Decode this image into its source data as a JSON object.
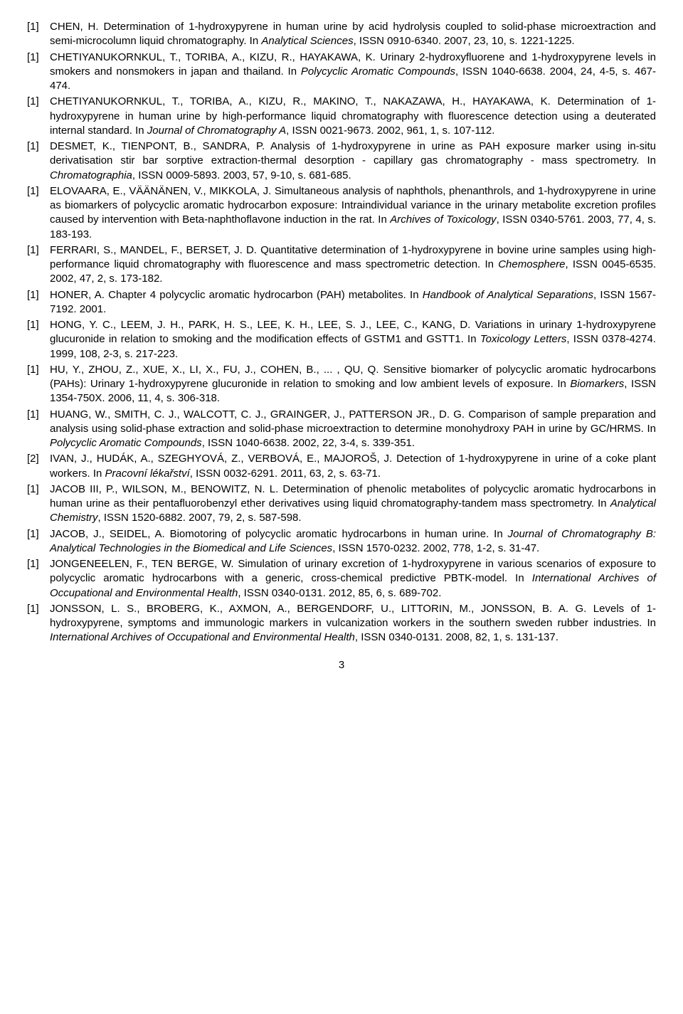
{
  "page_number": "3",
  "refs": [
    {
      "n": "[1]",
      "segs": [
        {
          "t": "CHEN, H. Determination of 1-hydroxypyrene in human urine by acid hydrolysis coupled to solid-phase microextraction and semi-microcolumn liquid chromatography. In "
        },
        {
          "t": "Analytical Sciences",
          "i": true
        },
        {
          "t": ", ISSN 0910-6340. 2007, 23, 10, s. 1221-1225."
        }
      ]
    },
    {
      "n": "[1]",
      "segs": [
        {
          "t": "CHETIYANUKORNKUL, T., TORIBA, A., KIZU, R., HAYAKAWA, K. Urinary 2-hydroxyfluorene and 1-hydroxypyrene levels in smokers and nonsmokers in japan and thailand. In "
        },
        {
          "t": "Polycyclic Aromatic Compounds",
          "i": true
        },
        {
          "t": ", ISSN 1040-6638. 2004, 24, 4-5, s. 467-474."
        }
      ]
    },
    {
      "n": "[1]",
      "segs": [
        {
          "t": "CHETIYANUKORNKUL, T., TORIBA, A., KIZU, R., MAKINO, T., NAKAZAWA, H., HAYAKAWA, K. Determination of 1-hydroxypyrene in human urine by high-performance liquid chromatography with fluorescence detection using a deuterated internal standard. In "
        },
        {
          "t": "Journal of Chromatography A",
          "i": true
        },
        {
          "t": ", ISSN 0021-9673. 2002, 961, 1, s. 107-112."
        }
      ]
    },
    {
      "n": "[1]",
      "segs": [
        {
          "t": "DESMET, K., TIENPONT, B., SANDRA, P. Analysis of 1-hydroxypyrene in urine as PAH exposure marker using in-situ derivatisation stir bar sorptive extraction-thermal desorption - capillary gas chromatography - mass spectrometry. In "
        },
        {
          "t": "Chromatographia",
          "i": true
        },
        {
          "t": ", ISSN 0009-5893. 2003, 57, 9-10, s. 681-685."
        }
      ]
    },
    {
      "n": "[1]",
      "segs": [
        {
          "t": "ELOVAARA, E., VÄÄNÄNEN, V., MIKKOLA, J. Simultaneous analysis of naphthols, phenanthrols, and 1-hydroxypyrene in urine as biomarkers of polycyclic aromatic hydrocarbon exposure: Intraindividual variance in the urinary metabolite excretion profiles caused by intervention with Beta-naphthoflavone induction in the rat. In "
        },
        {
          "t": "Archives of Toxicology",
          "i": true
        },
        {
          "t": ", ISSN 0340-5761. 2003, 77, 4, s. 183-193."
        }
      ]
    },
    {
      "n": "[1]",
      "segs": [
        {
          "t": "FERRARI, S., MANDEL, F., BERSET, J. D. Quantitative determination of 1-hydroxypyrene in bovine urine samples using high-performance liquid chromatography with fluorescence and mass spectrometric detection. In "
        },
        {
          "t": "Chemosphere",
          "i": true
        },
        {
          "t": ", ISSN 0045-6535. 2002, 47, 2, s. 173-182."
        }
      ]
    },
    {
      "n": "[1]",
      "segs": [
        {
          "t": "HONER, A. Chapter 4 polycyclic aromatic hydrocarbon (PAH) metabolites. In "
        },
        {
          "t": "Handbook of Analytical Separations",
          "i": true
        },
        {
          "t": ", ISSN 1567-7192. 2001."
        }
      ]
    },
    {
      "n": "[1]",
      "segs": [
        {
          "t": "HONG, Y. C., LEEM, J. H., PARK, H. S., LEE, K. H., LEE, S. J., LEE, C., KANG, D. Variations in urinary 1-hydroxypyrene glucuronide in relation to smoking and the modification effects of GSTM1 and GSTT1. In "
        },
        {
          "t": "Toxicology Letters",
          "i": true
        },
        {
          "t": ", ISSN 0378-4274. 1999, 108, 2-3, s. 217-223."
        }
      ]
    },
    {
      "n": "[1]",
      "segs": [
        {
          "t": "HU, Y., ZHOU, Z., XUE, X., LI, X., FU, J., COHEN, B.,  ... , QU, Q. Sensitive biomarker of polycyclic aromatic hydrocarbons (PAHs): Urinary 1-hydroxypyrene glucuronide in relation to smoking and low ambient levels of exposure. In "
        },
        {
          "t": "Biomarkers",
          "i": true
        },
        {
          "t": ", ISSN 1354-750X. 2006, 11, 4, s. 306-318."
        }
      ]
    },
    {
      "n": "[1]",
      "segs": [
        {
          "t": "HUANG, W., SMITH, C. J., WALCOTT, C. J., GRAINGER, J., PATTERSON JR., D. G. Comparison of sample preparation and analysis using solid-phase extraction and solid-phase microextraction to determine monohydroxy PAH in urine by GC/HRMS. In "
        },
        {
          "t": "Polycyclic Aromatic Compounds",
          "i": true
        },
        {
          "t": ", ISSN 1040-6638. 2002, 22, 3-4, s. 339-351."
        }
      ]
    },
    {
      "n": "[2]",
      "segs": [
        {
          "t": "IVAN, J., HUDÁK, A., SZEGHYOVÁ, Z., VERBOVÁ, E., MAJOROŠ, J. Detection of 1-hydroxypyrene in urine of a coke plant workers. In "
        },
        {
          "t": "Pracovní lékařství",
          "i": true
        },
        {
          "t": ", ISSN 0032-6291. 2011, 63, 2, s. 63-71."
        }
      ]
    },
    {
      "n": "[1]",
      "segs": [
        {
          "t": "JACOB III, P., WILSON, M., BENOWITZ, N. L. Determination of phenolic metabolites of polycyclic aromatic hydrocarbons in human urine as their pentafluorobenzyl ether derivatives using liquid chromatography-tandem mass spectrometry. In "
        },
        {
          "t": "Analytical Chemistry",
          "i": true
        },
        {
          "t": ", ISSN 1520-6882. 2007, 79, 2, s. 587-598."
        }
      ]
    },
    {
      "n": "[1]",
      "segs": [
        {
          "t": "JACOB, J., SEIDEL, A. Biomotoring of polycyclic aromatic hydrocarbons in human urine. In "
        },
        {
          "t": "Journal of Chromatography B: Analytical Technologies in the Biomedical and Life Sciences",
          "i": true
        },
        {
          "t": ", ISSN 1570-0232. 2002, 778, 1-2, s. 31-47."
        }
      ]
    },
    {
      "n": "[1]",
      "segs": [
        {
          "t": "JONGENEELEN, F., TEN BERGE, W. Simulation of urinary excretion of 1-hydroxypyrene in various scenarios of exposure to polycyclic aromatic hydrocarbons with a generic, cross-chemical predictive PBTK-model. In "
        },
        {
          "t": "International Archives of Occupational and Environmental Health",
          "i": true
        },
        {
          "t": ", ISSN 0340-0131. 2012, 85, 6, s. 689-702."
        }
      ]
    },
    {
      "n": "[1]",
      "segs": [
        {
          "t": "JONSSON, L. S., BROBERG, K., AXMON, A., BERGENDORF, U., LITTORIN, M., JONSSON, B. A. G. Levels of 1-hydroxypyrene, symptoms and immunologic markers in vulcanization workers in the southern sweden rubber industries. In "
        },
        {
          "t": "International Archives of Occupational and Environmental Health",
          "i": true
        },
        {
          "t": ", ISSN 0340-0131. 2008, 82, 1, s. 131-137."
        }
      ]
    }
  ]
}
